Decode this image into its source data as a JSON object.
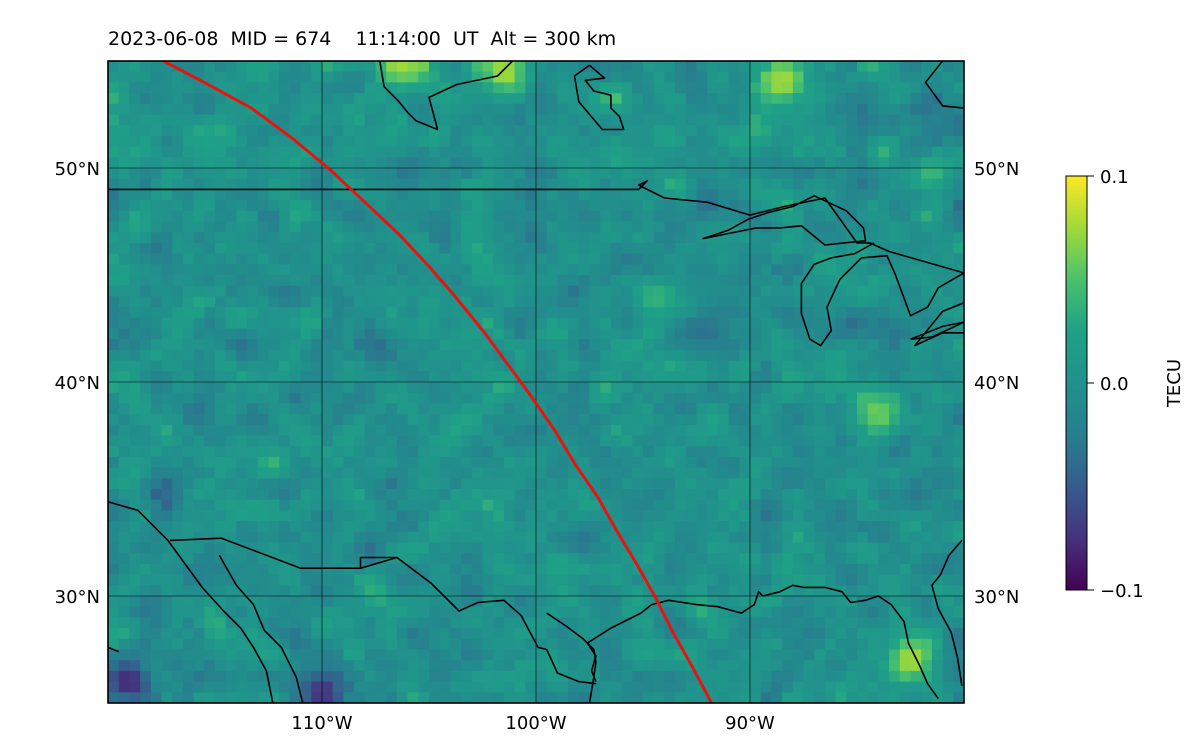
{
  "title": {
    "text": "2023-06-08  MID = 674    11:14:00  UT  Alt = 300 km"
  },
  "map": {
    "extent": {
      "lon_min": -120,
      "lon_max": -80,
      "lat_min": 25,
      "lat_max": 55
    },
    "gridlines": {
      "lons": [
        -110,
        -100,
        -90
      ],
      "lats": [
        30,
        40,
        50
      ]
    },
    "lon_labels": [
      {
        "lon": -110,
        "text": "110°W"
      },
      {
        "lon": -100,
        "text": "100°W"
      },
      {
        "lon": -90,
        "text": "90°W"
      }
    ],
    "lat_labels": [
      {
        "lat": 50,
        "text": "50°N"
      },
      {
        "lat": 40,
        "text": "40°N"
      },
      {
        "lat": 30,
        "text": "30°N"
      }
    ],
    "track": {
      "color": "#e8130e",
      "points": [
        [
          -117.4,
          55
        ],
        [
          -115.5,
          54
        ],
        [
          -113.3,
          52.8
        ],
        [
          -111.4,
          51.4
        ],
        [
          -109.6,
          49.9
        ],
        [
          -108.0,
          48.4
        ],
        [
          -106.4,
          46.9
        ],
        [
          -105.0,
          45.4
        ],
        [
          -103.7,
          43.9
        ],
        [
          -102.4,
          42.3
        ],
        [
          -101.3,
          40.8
        ],
        [
          -100.2,
          39.3
        ],
        [
          -99.1,
          37.7
        ],
        [
          -98.2,
          36.2
        ],
        [
          -97.1,
          34.6
        ],
        [
          -96.2,
          33.0
        ],
        [
          -95.3,
          31.5
        ],
        [
          -94.4,
          29.9
        ],
        [
          -93.6,
          28.3
        ],
        [
          -92.7,
          26.7
        ],
        [
          -91.8,
          25.0
        ]
      ]
    },
    "tec_field": {
      "description_values": "detrended TEC perturbations",
      "grid_lon_step": 0.5,
      "grid_lat_step": 0.5,
      "mean": 0.0,
      "spread": 0.045,
      "hotspots": [
        {
          "lon": -94.5,
          "lat": 44.0,
          "value": 0.04
        },
        {
          "lon": -84.0,
          "lat": 38.5,
          "value": 0.07
        },
        {
          "lon": -82.5,
          "lat": 27.0,
          "value": 0.09
        },
        {
          "lon": -88.5,
          "lat": 54.0,
          "value": 0.09
        },
        {
          "lon": -119.0,
          "lat": 26.0,
          "value": -0.1
        },
        {
          "lon": -110.0,
          "lat": 25.4,
          "value": -0.09
        },
        {
          "lon": -101.5,
          "lat": 54.5,
          "value": 0.1
        },
        {
          "lon": -106.5,
          "lat": 54.8,
          "value": 0.09
        }
      ]
    }
  },
  "colorbar": {
    "label": "TECU",
    "vmin": -0.1,
    "vmax": 0.1,
    "ticks": [
      {
        "value": 0.1,
        "text": "0.1"
      },
      {
        "value": 0.0,
        "text": "0.0"
      },
      {
        "value": -0.1,
        "text": "−0.1"
      }
    ],
    "colormap": "viridis"
  },
  "coastlines": [
    [
      [
        -120,
        49
      ],
      [
        -95.2,
        49
      ],
      [
        -94.8,
        49.4
      ],
      [
        -95.2,
        49.2
      ],
      [
        -94,
        48.6
      ],
      [
        -92,
        48.4
      ],
      [
        -90,
        47.8
      ],
      [
        -88.4,
        48.2
      ],
      [
        -86.5,
        48.6
      ],
      [
        -85,
        46.5
      ],
      [
        -84.4,
        46.5
      ],
      [
        -83.5,
        46.1
      ],
      [
        -80,
        45.1
      ]
    ],
    [
      [
        -89.2,
        47.9
      ],
      [
        -88,
        48.2
      ],
      [
        -87,
        48.7
      ],
      [
        -85.5,
        48
      ],
      [
        -84.7,
        47.2
      ],
      [
        -84.6,
        46.6
      ],
      [
        -85.6,
        46.5
      ],
      [
        -86.5,
        46.4
      ],
      [
        -87.6,
        47.3
      ],
      [
        -88.6,
        47.2
      ],
      [
        -89.7,
        47.2
      ],
      [
        -92.2,
        46.7
      ],
      [
        -91,
        47.1
      ],
      [
        -90.1,
        47.6
      ],
      [
        -89.2,
        47.9
      ]
    ],
    [
      [
        -84.2,
        46.5
      ],
      [
        -85.1,
        46
      ],
      [
        -86.2,
        45.8
      ],
      [
        -87,
        45.5
      ],
      [
        -87.6,
        44.6
      ],
      [
        -87.6,
        43.2
      ],
      [
        -87.2,
        42
      ],
      [
        -86.7,
        41.7
      ],
      [
        -86.2,
        42.4
      ],
      [
        -86.4,
        43.5
      ],
      [
        -85.8,
        44.8
      ],
      [
        -84.8,
        45.8
      ],
      [
        -83.6,
        45.9
      ],
      [
        -83.2,
        45
      ],
      [
        -82.5,
        43.1
      ],
      [
        -81.7,
        43.5
      ],
      [
        -81.2,
        44.4
      ],
      [
        -80,
        45.1
      ]
    ],
    [
      [
        -82.5,
        42
      ],
      [
        -81,
        42.6
      ],
      [
        -80,
        42.8
      ],
      [
        -81.5,
        42.1
      ],
      [
        -82.5,
        42
      ]
    ],
    [
      [
        -80,
        43.7
      ],
      [
        -81,
        43.3
      ],
      [
        -82.3,
        41.7
      ],
      [
        -81,
        42.3
      ],
      [
        -80,
        42.3
      ]
    ],
    [
      [
        -99.5,
        29.2
      ],
      [
        -98.6,
        28.6
      ],
      [
        -97.8,
        28
      ],
      [
        -97.3,
        27.5
      ],
      [
        -97.2,
        26.9
      ],
      [
        -97.3,
        26.2
      ],
      [
        -97.5,
        25
      ]
    ],
    [
      [
        -97.2,
        26.0
      ],
      [
        -97.4,
        26.5
      ],
      [
        -97.2,
        27.2
      ],
      [
        -97.6,
        27.8
      ],
      [
        -96.5,
        28.5
      ],
      [
        -95.1,
        29.2
      ],
      [
        -94.6,
        29.6
      ],
      [
        -93.8,
        29.8
      ],
      [
        -92.5,
        29.6
      ],
      [
        -91.5,
        29.5
      ],
      [
        -90.4,
        29.2
      ],
      [
        -89.8,
        29.6
      ],
      [
        -89.6,
        30.2
      ],
      [
        -89.4,
        30.0
      ],
      [
        -88.6,
        30.2
      ],
      [
        -88,
        30.5
      ],
      [
        -87.5,
        30.4
      ],
      [
        -86.5,
        30.4
      ],
      [
        -85.7,
        30.2
      ],
      [
        -85.3,
        29.7
      ],
      [
        -84.6,
        29.8
      ],
      [
        -84,
        30
      ],
      [
        -83.4,
        29.6
      ],
      [
        -82.8,
        28.8
      ],
      [
        -82.6,
        27.8
      ],
      [
        -82.1,
        26.8
      ],
      [
        -81.7,
        25.9
      ],
      [
        -81.2,
        25.2
      ]
    ],
    [
      [
        -80.1,
        32.6
      ],
      [
        -80.7,
        31.9
      ],
      [
        -81.1,
        31.0
      ],
      [
        -81.5,
        30.5
      ],
      [
        -81.2,
        29.4
      ],
      [
        -80.6,
        28.3
      ],
      [
        -80.3,
        27.1
      ],
      [
        -80.1,
        25.8
      ]
    ],
    [
      [
        -120,
        34.4
      ],
      [
        -118.6,
        34.0
      ],
      [
        -117.2,
        32.6
      ],
      [
        -116.4,
        31.5
      ],
      [
        -115.6,
        30.4
      ],
      [
        -114.6,
        29.3
      ],
      [
        -113.8,
        28.5
      ],
      [
        -113.2,
        27.6
      ],
      [
        -112.6,
        26.5
      ],
      [
        -112.3,
        25.0
      ]
    ],
    [
      [
        -114.8,
        31.9
      ],
      [
        -114.0,
        30.5
      ],
      [
        -113.2,
        29.6
      ],
      [
        -112.7,
        28.4
      ],
      [
        -111.9,
        27.6
      ],
      [
        -111.2,
        26.2
      ],
      [
        -110.9,
        25.0
      ]
    ],
    [
      [
        -117.1,
        32.6
      ],
      [
        -114.7,
        32.7
      ],
      [
        -111.0,
        31.3
      ],
      [
        -108.2,
        31.3
      ],
      [
        -106.5,
        31.8
      ],
      [
        -104.9,
        30.6
      ],
      [
        -103.6,
        29.3
      ],
      [
        -102.7,
        29.7
      ],
      [
        -101.5,
        29.8
      ],
      [
        -100.7,
        29.1
      ],
      [
        -99.9,
        27.6
      ],
      [
        -99.5,
        27.5
      ],
      [
        -99.0,
        26.4
      ],
      [
        -98.0,
        26.0
      ],
      [
        -97.2,
        25.9
      ]
    ],
    [
      [
        -108.2,
        31.3
      ],
      [
        -108.2,
        31.8
      ],
      [
        -106.5,
        31.8
      ]
    ],
    [
      [
        -120,
        27.6
      ],
      [
        -119.5,
        27.4
      ]
    ],
    [
      [
        -107.3,
        55
      ],
      [
        -107.1,
        53.8
      ],
      [
        -106.4,
        53.1
      ],
      [
        -106.0,
        52.6
      ],
      [
        -105.6,
        52.2
      ],
      [
        -104.6,
        51.8
      ],
      [
        -105.0,
        53.3
      ],
      [
        -103.7,
        53.9
      ],
      [
        -101.8,
        54.3
      ],
      [
        -101.1,
        55
      ]
    ],
    [
      [
        -80,
        52.8
      ],
      [
        -81,
        52.9
      ],
      [
        -81.8,
        54.0
      ],
      [
        -81.0,
        55
      ]
    ],
    [
      [
        -97.5,
        54.8
      ],
      [
        -96.8,
        54.2
      ],
      [
        -97.7,
        54.1
      ],
      [
        -97.3,
        53.6
      ],
      [
        -96.5,
        53.4
      ],
      [
        -96.5,
        52.8
      ],
      [
        -96.1,
        52.4
      ],
      [
        -95.9,
        51.8
      ],
      [
        -96.9,
        51.8
      ],
      [
        -98.0,
        53.1
      ],
      [
        -98.2,
        54.3
      ],
      [
        -97.5,
        54.8
      ]
    ]
  ]
}
